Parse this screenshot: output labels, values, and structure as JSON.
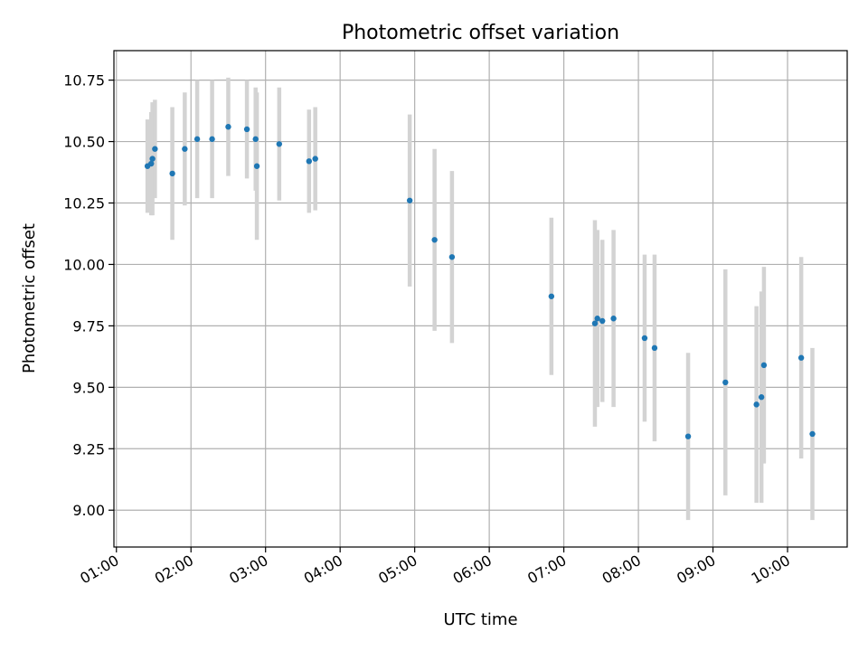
{
  "chart_data": {
    "type": "scatter",
    "title": "Photometric offset variation",
    "xlabel": "UTC time",
    "ylabel": "Photometric offset",
    "x_axis_type": "time",
    "xlim": [
      "00:58",
      "10:48"
    ],
    "ylim": [
      8.85,
      10.87
    ],
    "x_ticks": [
      "01:00",
      "02:00",
      "03:00",
      "04:00",
      "05:00",
      "06:00",
      "07:00",
      "08:00",
      "09:00",
      "10:00"
    ],
    "y_ticks": [
      "9.00",
      "9.25",
      "9.50",
      "9.75",
      "10.00",
      "10.25",
      "10.50",
      "10.75"
    ],
    "grid": true,
    "legend": "none",
    "point_color": "#1f77b4",
    "errorbar_color": "#d3d3d3",
    "points": [
      {
        "x": "01:25",
        "y": 10.4,
        "err": 0.19
      },
      {
        "x": "01:28",
        "y": 10.41,
        "err": 0.21
      },
      {
        "x": "01:29",
        "y": 10.43,
        "err": 0.23
      },
      {
        "x": "01:31",
        "y": 10.47,
        "err": 0.2
      },
      {
        "x": "01:45",
        "y": 10.37,
        "err": 0.27
      },
      {
        "x": "01:55",
        "y": 10.47,
        "err": 0.23
      },
      {
        "x": "02:05",
        "y": 10.51,
        "err": 0.24
      },
      {
        "x": "02:17",
        "y": 10.51,
        "err": 0.24
      },
      {
        "x": "02:30",
        "y": 10.56,
        "err": 0.2
      },
      {
        "x": "02:45",
        "y": 10.55,
        "err": 0.2
      },
      {
        "x": "02:52",
        "y": 10.51,
        "err": 0.21
      },
      {
        "x": "02:53",
        "y": 10.4,
        "err": 0.3
      },
      {
        "x": "03:11",
        "y": 10.49,
        "err": 0.23
      },
      {
        "x": "03:35",
        "y": 10.42,
        "err": 0.21
      },
      {
        "x": "03:40",
        "y": 10.43,
        "err": 0.21
      },
      {
        "x": "04:56",
        "y": 10.26,
        "err": 0.35
      },
      {
        "x": "05:16",
        "y": 10.1,
        "err": 0.37
      },
      {
        "x": "05:30",
        "y": 10.03,
        "err": 0.35
      },
      {
        "x": "06:50",
        "y": 9.87,
        "err": 0.32
      },
      {
        "x": "07:25",
        "y": 9.76,
        "err": 0.42
      },
      {
        "x": "07:27",
        "y": 9.78,
        "err": 0.36
      },
      {
        "x": "07:31",
        "y": 9.77,
        "err": 0.33
      },
      {
        "x": "07:40",
        "y": 9.78,
        "err": 0.36
      },
      {
        "x": "08:05",
        "y": 9.7,
        "err": 0.34
      },
      {
        "x": "08:13",
        "y": 9.66,
        "err": 0.38
      },
      {
        "x": "08:40",
        "y": 9.3,
        "err": 0.34
      },
      {
        "x": "09:10",
        "y": 9.52,
        "err": 0.46
      },
      {
        "x": "09:35",
        "y": 9.43,
        "err": 0.4
      },
      {
        "x": "09:39",
        "y": 9.46,
        "err": 0.43
      },
      {
        "x": "09:41",
        "y": 9.59,
        "err": 0.4
      },
      {
        "x": "10:11",
        "y": 9.62,
        "err": 0.41
      },
      {
        "x": "10:20",
        "y": 9.31,
        "err": 0.35
      }
    ]
  }
}
